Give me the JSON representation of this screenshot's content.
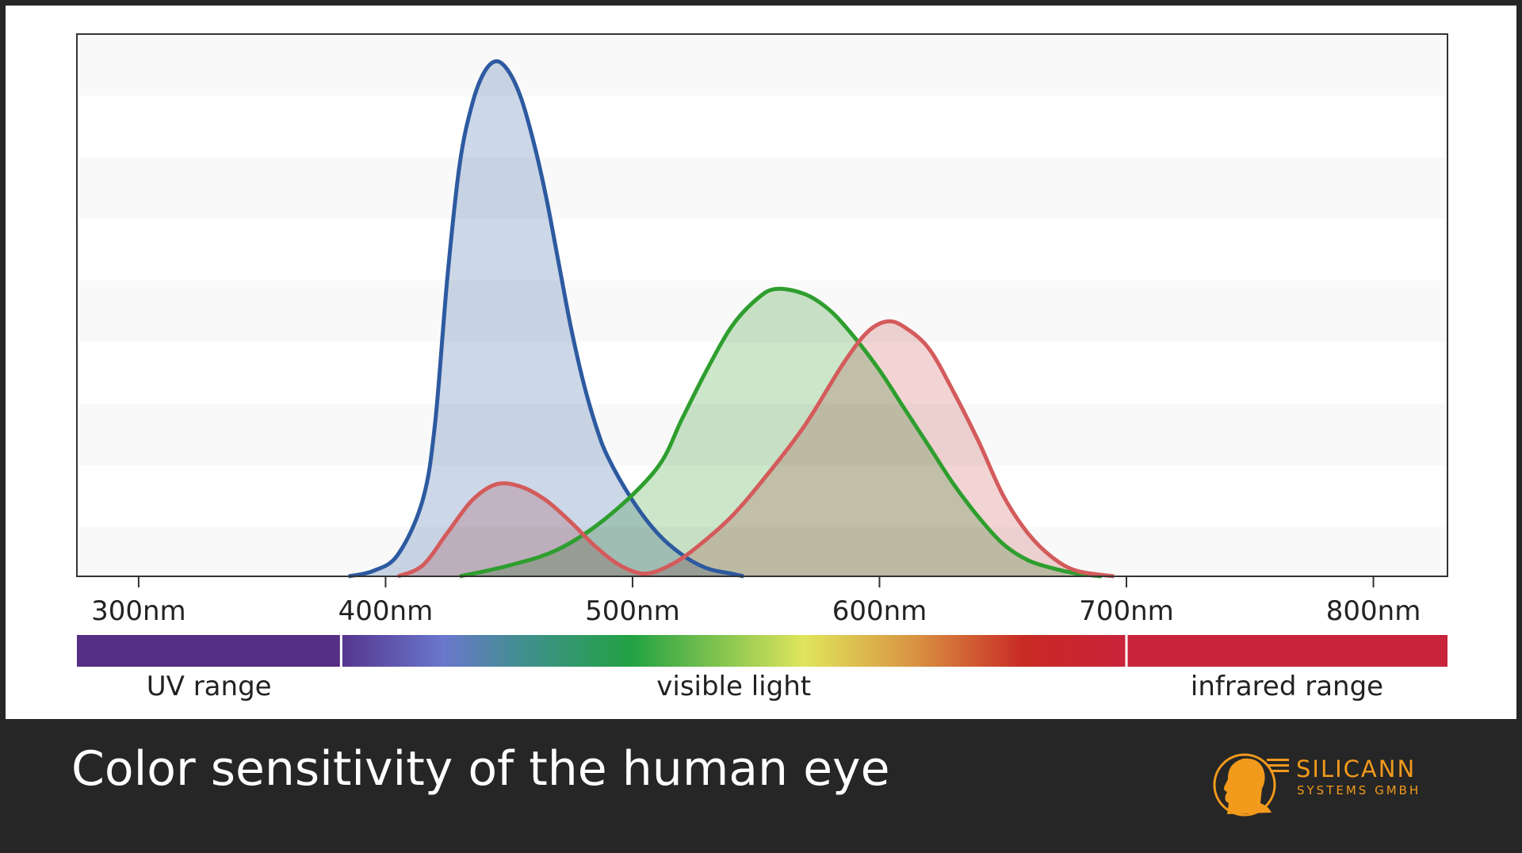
{
  "chart_data": {
    "type": "area",
    "title": "Color sensitivity of the human eye",
    "xlabel": "",
    "ylabel": "",
    "x_unit": "nm",
    "xlim": [
      275,
      830
    ],
    "ylim": [
      0,
      1.0
    ],
    "grid": "horizontal alternating bands",
    "x_ticks": [
      300,
      400,
      500,
      600,
      700,
      800
    ],
    "x_tick_labels": [
      "300nm",
      "400nm",
      "500nm",
      "600nm",
      "700nm",
      "800nm"
    ],
    "series": [
      {
        "color": "#2d5aa0",
        "fill": "#c3d0e4",
        "x": [
          385,
          395,
          405,
          415,
          420,
          425,
          430,
          435,
          440,
          445,
          450,
          455,
          460,
          465,
          470,
          475,
          480,
          485,
          490,
          500,
          510,
          520,
          530,
          540,
          545
        ],
        "y": [
          0.0,
          0.01,
          0.04,
          0.14,
          0.28,
          0.55,
          0.76,
          0.87,
          0.93,
          0.95,
          0.93,
          0.88,
          0.8,
          0.7,
          0.58,
          0.46,
          0.36,
          0.28,
          0.22,
          0.14,
          0.08,
          0.04,
          0.015,
          0.005,
          0.0
        ]
      },
      {
        "color": "#2e9e2e",
        "fill": "#c3e2c1",
        "x": [
          430,
          450,
          470,
          490,
          510,
          520,
          530,
          540,
          550,
          558,
          570,
          580,
          590,
          600,
          610,
          620,
          630,
          640,
          650,
          660,
          670,
          680,
          690
        ],
        "y": [
          0.0,
          0.02,
          0.05,
          0.11,
          0.2,
          0.29,
          0.38,
          0.46,
          0.51,
          0.53,
          0.52,
          0.49,
          0.44,
          0.38,
          0.31,
          0.24,
          0.17,
          0.11,
          0.06,
          0.03,
          0.015,
          0.005,
          0.0
        ]
      },
      {
        "color": "#d45b5b",
        "fill": "#f0cccc",
        "x": [
          405,
          415,
          425,
          435,
          445,
          455,
          465,
          475,
          485,
          495,
          505,
          515,
          525,
          540,
          555,
          570,
          585,
          595,
          603,
          610,
          620,
          630,
          640,
          650,
          660,
          670,
          680,
          695
        ],
        "y": [
          0.0,
          0.02,
          0.08,
          0.14,
          0.17,
          0.165,
          0.14,
          0.1,
          0.055,
          0.02,
          0.005,
          0.02,
          0.05,
          0.11,
          0.19,
          0.28,
          0.39,
          0.45,
          0.47,
          0.46,
          0.42,
          0.34,
          0.25,
          0.15,
          0.08,
          0.035,
          0.01,
          0.0
        ]
      }
    ],
    "bands": [
      {
        "label": "UV range",
        "from": 275,
        "to": 382,
        "color": "#542f84"
      },
      {
        "label": "visible light",
        "from": 382,
        "to": 700
      },
      {
        "label": "infrared range",
        "from": 700,
        "to": 830,
        "color": "#c8243b"
      }
    ],
    "spectrum_stops": [
      {
        "offset": 0.0,
        "color": "#56358f"
      },
      {
        "offset": 0.13,
        "color": "#6a77cc"
      },
      {
        "offset": 0.23,
        "color": "#418f8f"
      },
      {
        "offset": 0.37,
        "color": "#22a243"
      },
      {
        "offset": 0.59,
        "color": "#e0e55c"
      },
      {
        "offset": 0.73,
        "color": "#d99342"
      },
      {
        "offset": 0.87,
        "color": "#c82a24"
      },
      {
        "offset": 1.0,
        "color": "#c8243b"
      }
    ]
  },
  "footer": {
    "title": "Color sensitivity of the human eye"
  },
  "logo": {
    "name": "SILICANN",
    "subtitle": "SYSTEMS GMBH",
    "color": "#f29a1c"
  },
  "theme": {
    "frame_color": "#262626",
    "panel_color": "#ffffff",
    "plot_band_color": "#f9f9f9"
  }
}
